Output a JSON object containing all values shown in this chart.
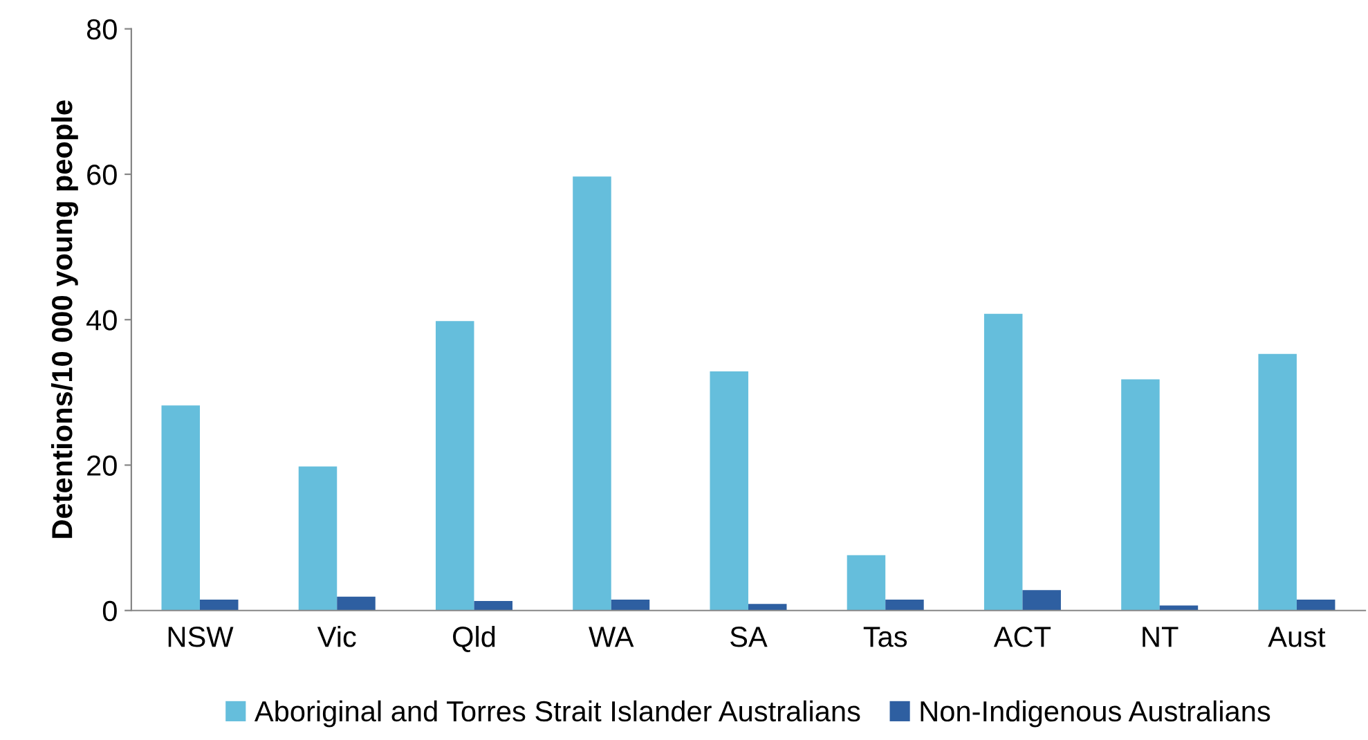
{
  "chart_data": {
    "type": "bar",
    "ylabel": "Detentions/10 000 young people",
    "categories": [
      "NSW",
      "Vic",
      "Qld",
      "WA",
      "SA",
      "Tas",
      "ACT",
      "NT",
      "Aust"
    ],
    "series": [
      {
        "name": "Aboriginal and Torres Strait Islander Australians",
        "color": "#65bedc",
        "values": [
          28.2,
          19.8,
          39.8,
          59.7,
          32.9,
          7.6,
          40.8,
          31.8,
          35.3
        ]
      },
      {
        "name": "Non-Indigenous Australians",
        "color": "#2e5fa1",
        "values": [
          1.5,
          1.9,
          1.3,
          1.5,
          0.9,
          1.5,
          2.8,
          0.7,
          1.5
        ]
      }
    ],
    "ylim": [
      0,
      80
    ],
    "yticks": [
      0,
      20,
      40,
      60,
      80
    ],
    "grid": false,
    "legend": "bottom"
  }
}
